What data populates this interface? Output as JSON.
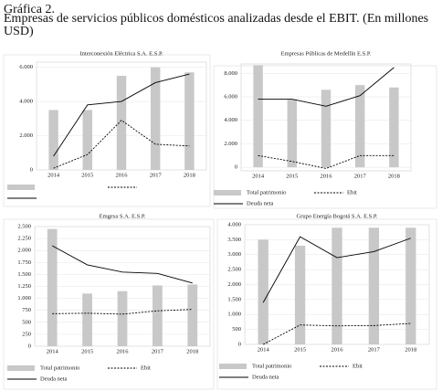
{
  "header": {
    "label": "Gráfica 2.",
    "title": "Empresas de servicios públicos domésticos analizadas desde el EBIT. (En millones USD)"
  },
  "chart_data": [
    {
      "type": "combo",
      "title": "Interconexión Eléctrica S.A. E.S.P.",
      "categories": [
        "2014",
        "2015",
        "2016",
        "2017",
        "2018"
      ],
      "ylim": [
        0,
        6300
      ],
      "yticks": [
        0,
        {
          "value": 2000,
          "label": "2.000"
        },
        {
          "value": 4000,
          "label": "4.000"
        },
        {
          "value": 6000,
          "label": "6.000"
        }
      ],
      "series": [
        {
          "kind": "bar",
          "color": "#c8c8c8",
          "values": [
            3500,
            3500,
            5500,
            6000,
            5700
          ]
        },
        {
          "kind": "line",
          "dash": true,
          "color": "#000000",
          "values": [
            100,
            900,
            2900,
            1500,
            1400
          ]
        },
        {
          "kind": "line",
          "dash": false,
          "color": "#000000",
          "values": [
            800,
            3800,
            4000,
            5100,
            5600
          ]
        }
      ]
    },
    {
      "type": "combo",
      "title": "Empresas Públicas de Medellín E.S.P.",
      "categories": [
        "2014",
        "2015",
        "2016",
        "2017",
        "2018"
      ],
      "ylim": [
        -300,
        8800
      ],
      "yticks": [
        0,
        {
          "value": 2000,
          "label": "2.000"
        },
        {
          "value": 4000,
          "label": "4.000"
        },
        {
          "value": 6000,
          "label": "6.000"
        },
        {
          "value": 8000,
          "label": "8.000"
        }
      ],
      "series": [
        {
          "kind": "bar",
          "name": "Total patrimonio",
          "color": "#c8c8c8",
          "values": [
            8700,
            5800,
            6600,
            7000,
            6800
          ]
        },
        {
          "kind": "line",
          "name": "Ebit",
          "dash": true,
          "color": "#000000",
          "values": [
            1000,
            500,
            -100,
            1000,
            1000
          ]
        },
        {
          "kind": "line",
          "name": "Deuda neta",
          "dash": false,
          "color": "#000000",
          "values": [
            5800,
            5800,
            5200,
            6100,
            8500
          ]
        }
      ]
    },
    {
      "type": "combo",
      "title": "Emgesa S.A. E.S.P.",
      "categories": [
        "2014",
        "2015",
        "2016",
        "2017",
        "2018"
      ],
      "ylim": [
        0,
        2500
      ],
      "yticks": [
        0,
        250,
        500,
        750,
        {
          "value": 1000,
          "label": "1.000"
        },
        {
          "value": 1250,
          "label": "1.250"
        },
        {
          "value": 1500,
          "label": "1.500"
        },
        {
          "value": 1750,
          "label": "1.750"
        },
        {
          "value": 2000,
          "label": "2.000"
        },
        {
          "value": 2250,
          "label": "2.250"
        },
        {
          "value": 2500,
          "label": "2.500"
        }
      ],
      "series": [
        {
          "kind": "bar",
          "name": "Total patrimonio",
          "color": "#c8c8c8",
          "values": [
            2450,
            1100,
            1150,
            1270,
            1290
          ]
        },
        {
          "kind": "line",
          "name": "Ebit",
          "dash": true,
          "color": "#000000",
          "values": [
            680,
            690,
            670,
            740,
            770
          ]
        },
        {
          "kind": "line",
          "name": "Deuda neta",
          "dash": false,
          "color": "#000000",
          "values": [
            2100,
            1700,
            1550,
            1520,
            1320
          ]
        }
      ]
    },
    {
      "type": "combo",
      "title": "Grupo Energía Bogotá S.A. E.S.P.",
      "categories": [
        "2014",
        "2015",
        "2016",
        "2017",
        "2018"
      ],
      "ylim": [
        0,
        4000
      ],
      "yticks": [
        0,
        500,
        {
          "value": 1000,
          "label": "1.000"
        },
        {
          "value": 1500,
          "label": "1.500"
        },
        {
          "value": 2000,
          "label": "2.000"
        },
        {
          "value": 2500,
          "label": "2.500"
        },
        {
          "value": 3000,
          "label": "3.000"
        },
        {
          "value": 3500,
          "label": "3.500"
        },
        {
          "value": 4000,
          "label": "4.000"
        }
      ],
      "series": [
        {
          "kind": "bar",
          "name": "Total patrimonio",
          "color": "#c8c8c8",
          "values": [
            3500,
            3300,
            3900,
            3900,
            3900
          ]
        },
        {
          "kind": "line",
          "name": "Ebit",
          "dash": true,
          "color": "#000000",
          "values": [
            0,
            650,
            620,
            630,
            700
          ]
        },
        {
          "kind": "line",
          "name": "Deuda neta",
          "dash": false,
          "color": "#000000",
          "values": [
            1400,
            3600,
            2900,
            3100,
            3550
          ]
        }
      ]
    }
  ]
}
